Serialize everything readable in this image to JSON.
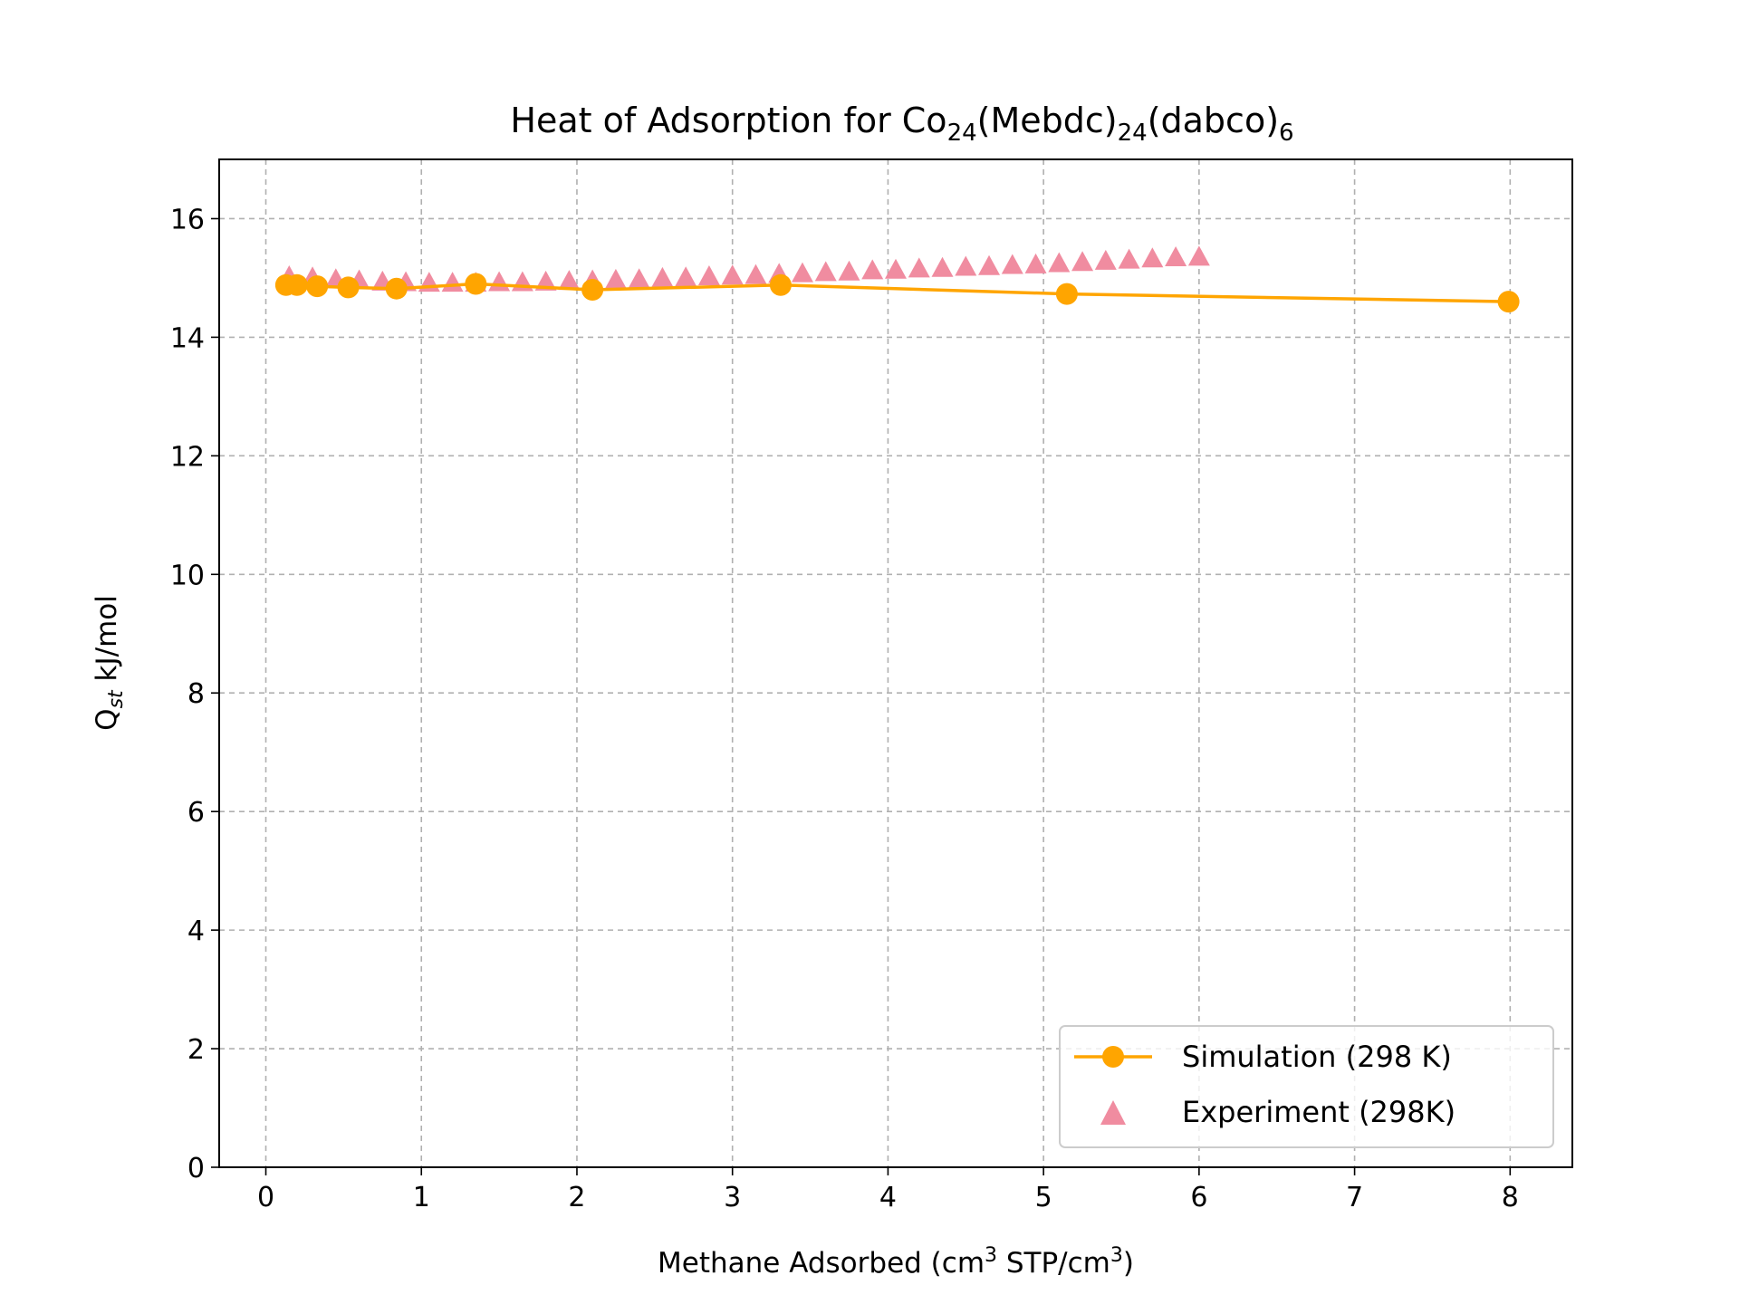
{
  "chart_data": {
    "type": "line",
    "title": "Heat of Adsorption for Co₂₄(Mebdc)₂₄(dabco)₆",
    "title_parts": {
      "base": "Heat of Adsorption for Co",
      "sub1": "24",
      "mid1": "(Mebdc)",
      "sub2": "24",
      "mid2": "(dabco)",
      "sub3": "6"
    },
    "xlabel": "Methane Adsorbed (cm³ STP/cm³)",
    "xlabel_parts": {
      "a": "Methane Adsorbed (cm",
      "sup1": "3",
      "b": " STP/cm",
      "sup2": "3",
      "c": ")"
    },
    "ylabel": "Qst kJ/mol",
    "ylabel_parts": {
      "a": "Q",
      "sub": "st",
      "b": " kJ/mol"
    },
    "xlim": [
      -0.3,
      8.4
    ],
    "ylim": [
      0,
      17
    ],
    "xticks": [
      "0",
      "1",
      "2",
      "3",
      "4",
      "5",
      "6",
      "7",
      "8"
    ],
    "yticks": [
      "0",
      "2",
      "4",
      "6",
      "8",
      "10",
      "12",
      "14",
      "16"
    ],
    "grid": true,
    "legend_position": "lower-right",
    "series": [
      {
        "name": "Simulation (298 K)",
        "marker": "circle",
        "line": true,
        "color": "#ffa500",
        "x": [
          0.13,
          0.2,
          0.33,
          0.53,
          0.84,
          1.35,
          2.1,
          3.31,
          5.15,
          7.99
        ],
        "y": [
          14.88,
          14.88,
          14.86,
          14.84,
          14.82,
          14.9,
          14.8,
          14.88,
          14.73,
          14.6
        ]
      },
      {
        "name": "Experiment (298K)",
        "marker": "triangle",
        "line": false,
        "color": "#f08ca0",
        "x": [
          0.15,
          0.3,
          0.45,
          0.6,
          0.75,
          0.9,
          1.05,
          1.2,
          1.35,
          1.5,
          1.65,
          1.8,
          1.95,
          2.1,
          2.25,
          2.4,
          2.55,
          2.7,
          2.85,
          3.0,
          3.15,
          3.3,
          3.45,
          3.6,
          3.75,
          3.9,
          4.05,
          4.2,
          4.35,
          4.5,
          4.65,
          4.8,
          4.95,
          5.1,
          5.25,
          5.4,
          5.55,
          5.7,
          5.85,
          6.0
        ],
        "y": [
          15.0,
          14.98,
          14.95,
          14.93,
          14.91,
          14.9,
          14.89,
          14.89,
          14.89,
          14.9,
          14.9,
          14.91,
          14.92,
          14.93,
          14.94,
          14.95,
          14.97,
          14.98,
          15.0,
          15.01,
          15.02,
          15.04,
          15.05,
          15.07,
          15.08,
          15.1,
          15.11,
          15.13,
          15.14,
          15.16,
          15.17,
          15.19,
          15.2,
          15.22,
          15.24,
          15.26,
          15.28,
          15.3,
          15.32,
          15.33
        ]
      }
    ]
  }
}
